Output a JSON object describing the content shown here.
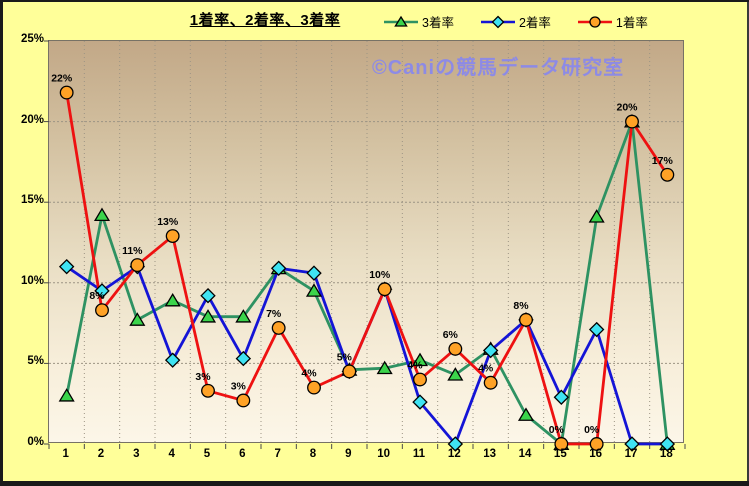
{
  "title": "1着率、2着率、3着率",
  "watermark": "©Caniの競馬データ研究室",
  "colors": {
    "background": "#FFFF99",
    "plot_border": "#777265",
    "gridline": "#9C9484",
    "axis_tick": "#4a4a4a",
    "series_green": "#2E9262",
    "series_blue": "#1414D6",
    "series_red": "#EE1111",
    "marker_green": "#3BD44B",
    "marker_cyan": "#3FE3F2",
    "marker_orange": "#FFA226",
    "marker_outline": "#000000",
    "watermark_color": "#8787EF"
  },
  "legend": {
    "items": [
      {
        "label": "3着率",
        "marker": "triangle",
        "line_color_key": "series_green",
        "marker_color_key": "marker_green"
      },
      {
        "label": "2着率",
        "marker": "diamond",
        "line_color_key": "series_blue",
        "marker_color_key": "marker_cyan"
      },
      {
        "label": "1着率",
        "marker": "circle",
        "line_color_key": "series_red",
        "marker_color_key": "marker_orange"
      }
    ]
  },
  "chart_data": {
    "type": "line",
    "title": "1着率、2着率、3着率",
    "xlabel": "",
    "ylabel": "",
    "ylim": [
      0,
      25
    ],
    "grid": true,
    "legend_position": "top-right",
    "categories": [
      "1",
      "2",
      "3",
      "4",
      "5",
      "6",
      "7",
      "8",
      "9",
      "10",
      "11",
      "12",
      "13",
      "14",
      "15",
      "16",
      "17",
      "18"
    ],
    "y_ticks": [
      {
        "label": "25%",
        "value": 25
      },
      {
        "label": "20%",
        "value": 20
      },
      {
        "label": "15%",
        "value": 15
      },
      {
        "label": "10%",
        "value": 10
      },
      {
        "label": "5%",
        "value": 5
      },
      {
        "label": "0%",
        "value": 0
      }
    ],
    "series": [
      {
        "name": "3着率",
        "marker": "triangle",
        "line_color_key": "series_green",
        "marker_color_key": "marker_green",
        "values": [
          3,
          14.2,
          7.7,
          8.9,
          7.9,
          7.9,
          10.9,
          9.5,
          4.6,
          4.7,
          5.2,
          4.3,
          5.9,
          1.8,
          0,
          14.1,
          20,
          0
        ]
      },
      {
        "name": "2着率",
        "marker": "diamond",
        "line_color_key": "series_blue",
        "marker_color_key": "marker_cyan",
        "values": [
          11,
          9.5,
          11,
          5.2,
          9.2,
          5.3,
          10.9,
          10.6,
          4.5,
          9.6,
          2.6,
          0,
          5.8,
          7.7,
          2.9,
          7.1,
          0,
          0
        ]
      },
      {
        "name": "1着率",
        "marker": "circle",
        "line_color_key": "series_red",
        "marker_color_key": "marker_orange",
        "values": [
          21.8,
          8.3,
          11.1,
          12.9,
          3.3,
          2.7,
          7.2,
          3.5,
          4.5,
          9.6,
          4.0,
          5.9,
          3.8,
          7.7,
          0,
          0,
          20,
          16.7
        ],
        "point_labels": [
          "22%",
          "8%",
          "11%",
          "13%",
          "3%",
          "3%",
          "7%",
          "4%",
          "5%",
          "10%",
          "4%",
          "6%",
          "4%",
          "8%",
          "0%",
          "0%",
          "20%",
          "17%"
        ]
      }
    ]
  }
}
